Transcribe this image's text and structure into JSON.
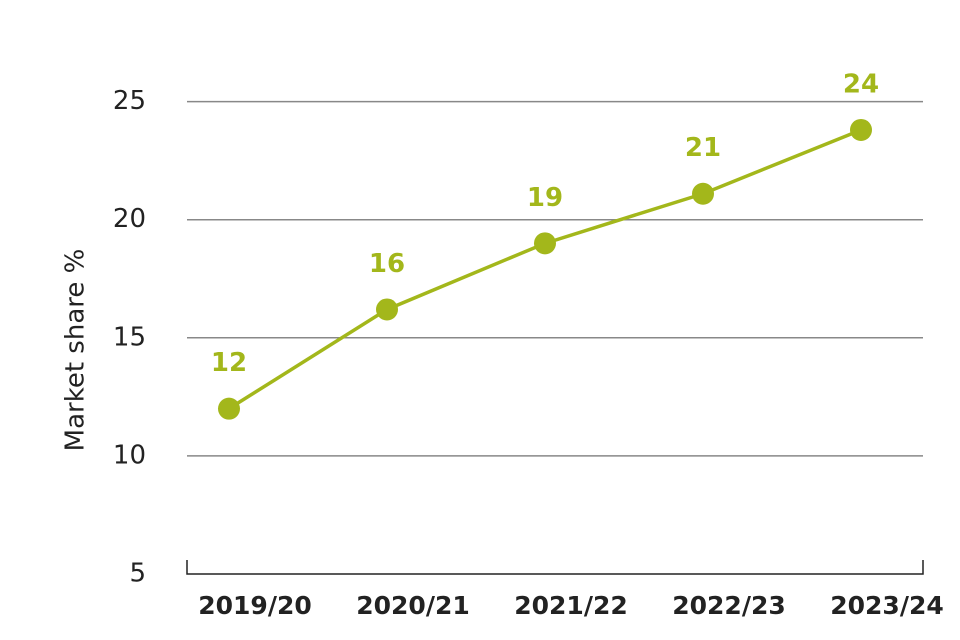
{
  "chart_data": {
    "type": "line",
    "y_label": "Market share  %",
    "categories": [
      "2019/20",
      "2020/21",
      "2021/22",
      "2022/23",
      "2023/24"
    ],
    "values": [
      12.0,
      16.2,
      19.0,
      21.1,
      23.8
    ],
    "value_labels": [
      "12",
      "16",
      "19",
      "21",
      "24"
    ],
    "color": "#a3b71b",
    "ylim": [
      5,
      26
    ],
    "yticks": [
      5,
      10,
      15,
      20,
      25
    ],
    "grid": true
  }
}
